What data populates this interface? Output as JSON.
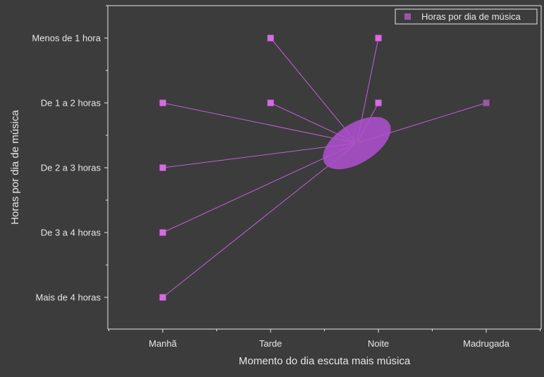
{
  "chart_data": {
    "type": "scatter",
    "title": "",
    "xlabel": "Momento do dia escuta mais música",
    "ylabel": "Horas por dia de música",
    "x_categories": [
      "Manhã",
      "Tarde",
      "Noite",
      "Madrugada"
    ],
    "y_categories": [
      "Mais de 4 horas",
      "De 3 a 4 horas",
      "De 2 a 3 horas",
      "De 1 a 2 horas",
      "Menos de 1 hora"
    ],
    "series": [
      {
        "name": "Horas por dia de música",
        "points": [
          {
            "x": "Manhã",
            "y": "De 1 a 2 horas"
          },
          {
            "x": "Manhã",
            "y": "De 2 a 3 horas"
          },
          {
            "x": "Manhã",
            "y": "De 3 a 4 horas"
          },
          {
            "x": "Manhã",
            "y": "Mais de 4 horas"
          },
          {
            "x": "Tarde",
            "y": "Menos de 1 hora"
          },
          {
            "x": "Tarde",
            "y": "De 1 a 2 horas"
          },
          {
            "x": "Noite",
            "y": "Menos de 1 hora"
          },
          {
            "x": "Noite",
            "y": "De 1 a 2 horas"
          },
          {
            "x": "Madrugada",
            "y": "De 1 a 2 horas"
          }
        ]
      }
    ],
    "centroid": {
      "x": 1.8,
      "y": 2.38
    },
    "legend_position": "top-right",
    "grid": false,
    "colors": {
      "background": "#3c3c3c",
      "axis": "#e6e6e6",
      "marker": "#d86ae6",
      "marker_faded": "#9c55a8",
      "line": "#c060d8",
      "ellipse": "#b050d0",
      "legend_marker": "#9c55a8"
    }
  }
}
